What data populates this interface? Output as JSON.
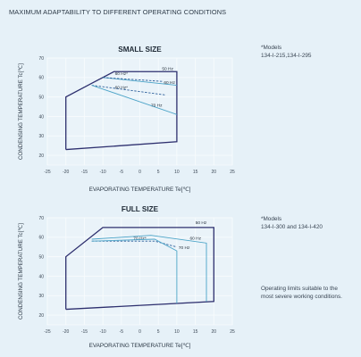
{
  "page": {
    "heading": "MAXIMUM ADAPTABILITY TO DIFFERENT OPERATING CONDITIONS",
    "colors": {
      "background": "#e6f1f8",
      "envelope": "#2d2f6e",
      "hz_line": "#4aa3c7",
      "grid": "#f7fbfd"
    }
  },
  "chart_data": [
    {
      "type": "line",
      "title": "SMALL SIZE",
      "xlabel": "EVAPORATING TEMPERATURE  Te[℃]",
      "ylabel": "CONDENSING TEMPERATURE  Tc[℃]",
      "xlim": [
        -25,
        25
      ],
      "ylim": [
        15,
        70
      ],
      "xticks": [
        "-25",
        "-20",
        "-15",
        "-10",
        "-5",
        "0",
        "5",
        "10",
        "15",
        "20",
        "25"
      ],
      "yticks": [
        "20",
        "30",
        "40",
        "50",
        "60",
        "70"
      ],
      "side_note": [
        "*Models",
        "134-I-215,134-I-295"
      ],
      "series": [
        {
          "name": "50 Hz",
          "style": "envelope",
          "x": [
            -20,
            -20,
            -13,
            -7,
            10,
            10,
            -20
          ],
          "y": [
            23,
            50,
            57,
            63,
            63,
            27,
            23
          ]
        },
        {
          "name": "60 Hz",
          "style": "solid",
          "x": [
            -10,
            10
          ],
          "y": [
            60,
            56
          ]
        },
        {
          "name": "60 Hz*",
          "style": "dashed",
          "x": [
            -10,
            6
          ],
          "y": [
            60,
            58
          ]
        },
        {
          "name": "60 Hz*",
          "style": "dashed",
          "x": [
            -13,
            7
          ],
          "y": [
            56,
            51
          ]
        },
        {
          "name": "70 Hz",
          "style": "solid",
          "x": [
            -13,
            10
          ],
          "y": [
            56,
            41
          ]
        }
      ]
    },
    {
      "type": "line",
      "title": "FULL SIZE",
      "xlabel": "EVAPORATING TEMPERATURE  Te[℃]",
      "ylabel": "CONDENSING TEMPERATURE  Tc[℃]",
      "xlim": [
        -25,
        25
      ],
      "ylim": [
        15,
        70
      ],
      "xticks": [
        "-25",
        "-20",
        "-15",
        "-10",
        "-5",
        "0",
        "5",
        "10",
        "15",
        "20",
        "25"
      ],
      "yticks": [
        "20",
        "30",
        "40",
        "50",
        "60",
        "70"
      ],
      "side_note": [
        "*Models",
        "134-I-300 and 134-I-420"
      ],
      "footnote": [
        "Operating limits suitable to the",
        "most severe working conditions."
      ],
      "series": [
        {
          "name": "50 Hz",
          "style": "envelope",
          "x": [
            -20,
            -20,
            -10,
            20,
            20,
            -20
          ],
          "y": [
            23,
            50,
            65,
            65,
            27,
            23
          ]
        },
        {
          "name": "60 Hz",
          "style": "solid",
          "x": [
            -13,
            3,
            18,
            18
          ],
          "y": [
            59,
            61,
            57,
            27
          ]
        },
        {
          "name": "70 Hz*",
          "style": "dashed",
          "x": [
            -13,
            4,
            10
          ],
          "y": [
            58,
            58,
            55
          ]
        },
        {
          "name": "70 Hz",
          "style": "solid",
          "x": [
            -13,
            4,
            10,
            10
          ],
          "y": [
            58,
            59,
            53,
            26
          ]
        }
      ]
    }
  ]
}
